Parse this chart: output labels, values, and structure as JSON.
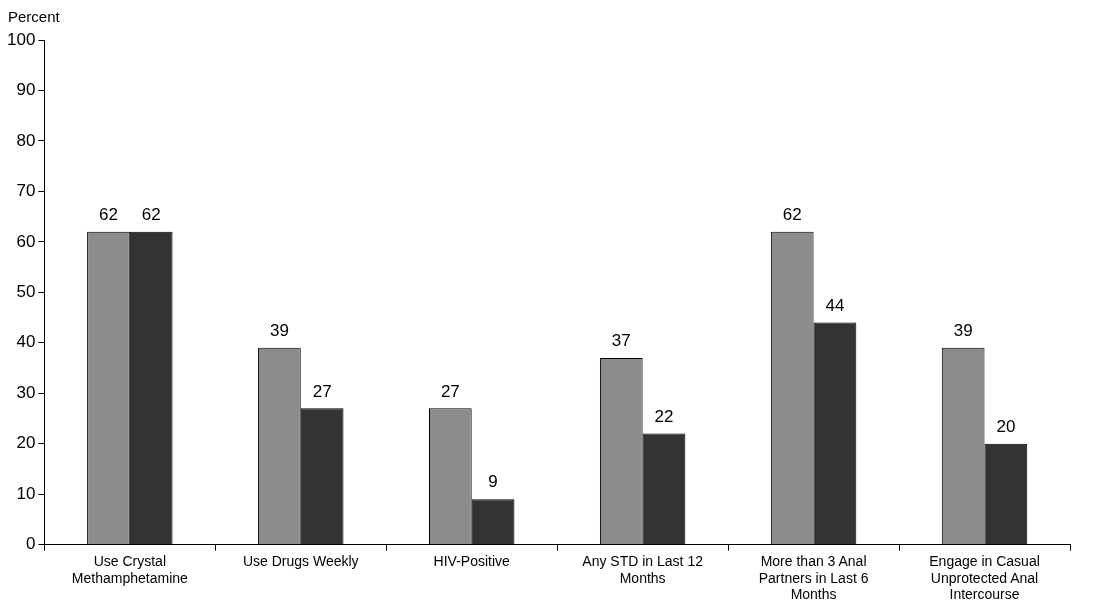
{
  "chart_data": {
    "type": "bar",
    "ylabel": "Percent",
    "categories": [
      "Use Crystal Methamphetamine",
      "Use Drugs Weekly",
      "HIV-Positive",
      "Any STD in Last 12 Months",
      "More than 3 Anal Partners in Last 6 Months",
      "Engage in Casual Unprotected Anal Intercourse"
    ],
    "series": [
      {
        "color": "#8c8c8c",
        "values": [
          62,
          39,
          27,
          37,
          62,
          39
        ]
      },
      {
        "color": "#333333",
        "values": [
          62,
          27,
          9,
          22,
          44,
          20
        ]
      }
    ],
    "ylim": [
      0,
      100
    ],
    "yticks": [
      0,
      10,
      20,
      30,
      40,
      50,
      60,
      70,
      80,
      90,
      100
    ],
    "grid": false,
    "legend": false,
    "data_labels": true
  }
}
